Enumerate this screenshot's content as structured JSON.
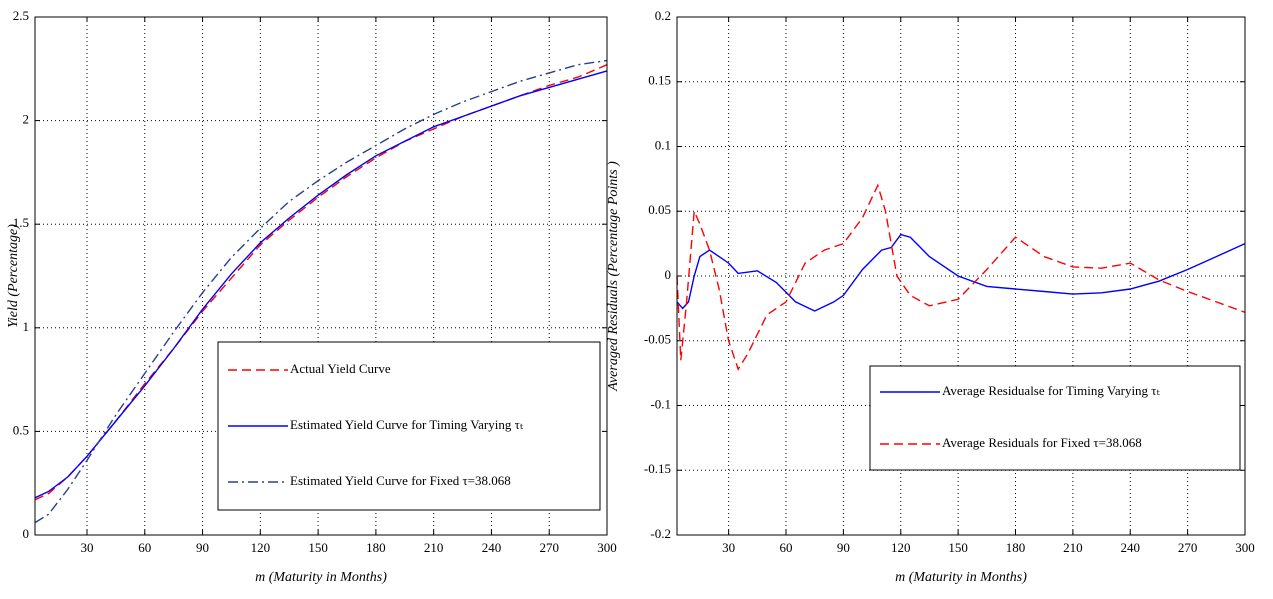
{
  "chart_data": [
    {
      "type": "line",
      "xlabel": "m (Maturity in Months)",
      "ylabel": "Yield (Percentage)",
      "xlim": [
        3,
        300
      ],
      "ylim": [
        0,
        2.5
      ],
      "xticks": [
        30,
        60,
        90,
        120,
        150,
        180,
        210,
        240,
        270,
        300
      ],
      "yticks": [
        0,
        0.5,
        1,
        1.5,
        2,
        2.5
      ],
      "grid": true,
      "legend": "lower right",
      "series": [
        {
          "name": "Actual Yield Curve",
          "color": "#ff0000",
          "linestyle": "dashed",
          "x": [
            3,
            10,
            20,
            30,
            45,
            60,
            75,
            90,
            105,
            120,
            135,
            150,
            165,
            180,
            195,
            210,
            225,
            240,
            255,
            270,
            285,
            300
          ],
          "values": [
            0.17,
            0.2,
            0.28,
            0.38,
            0.55,
            0.73,
            0.9,
            1.08,
            1.24,
            1.4,
            1.52,
            1.63,
            1.73,
            1.82,
            1.9,
            1.96,
            2.02,
            2.07,
            2.12,
            2.17,
            2.21,
            2.27
          ]
        },
        {
          "name": "Estimated Yield Curve for Timing Varying τₜ",
          "color": "#0000ff",
          "linestyle": "solid",
          "x": [
            3,
            10,
            20,
            30,
            45,
            60,
            75,
            90,
            105,
            120,
            135,
            150,
            165,
            180,
            195,
            210,
            225,
            240,
            255,
            270,
            285,
            300
          ],
          "values": [
            0.18,
            0.21,
            0.28,
            0.38,
            0.55,
            0.72,
            0.9,
            1.09,
            1.26,
            1.41,
            1.53,
            1.64,
            1.74,
            1.83,
            1.9,
            1.97,
            2.02,
            2.07,
            2.12,
            2.16,
            2.2,
            2.24
          ]
        },
        {
          "name": "Estimated Yield Curve for Fixed τ=38.068",
          "color": "#2b3f8f",
          "linestyle": "dashdot",
          "x": [
            3,
            10,
            20,
            30,
            45,
            60,
            75,
            90,
            105,
            120,
            135,
            150,
            165,
            180,
            195,
            210,
            225,
            240,
            255,
            270,
            285,
            300
          ],
          "values": [
            0.06,
            0.1,
            0.22,
            0.36,
            0.58,
            0.78,
            0.98,
            1.17,
            1.34,
            1.48,
            1.61,
            1.71,
            1.8,
            1.88,
            1.96,
            2.03,
            2.09,
            2.14,
            2.19,
            2.23,
            2.27,
            2.29
          ]
        }
      ]
    },
    {
      "type": "line",
      "xlabel": "m (Maturity in Months)",
      "ylabel": "Averaged Residuals (Percentage Points )",
      "xlim": [
        3,
        300
      ],
      "ylim": [
        -0.2,
        0.2
      ],
      "xticks": [
        30,
        60,
        90,
        120,
        150,
        180,
        210,
        240,
        270,
        300
      ],
      "yticks": [
        -0.2,
        -0.15,
        -0.1,
        -0.05,
        0,
        0.05,
        0.1,
        0.15,
        0.2
      ],
      "grid": true,
      "legend": "lower right",
      "series": [
        {
          "name": "Average Residualse for Timing Varying τₜ",
          "color": "#0000ff",
          "linestyle": "solid",
          "x": [
            3,
            6,
            9,
            12,
            15,
            20,
            25,
            30,
            35,
            45,
            55,
            65,
            75,
            85,
            90,
            100,
            110,
            115,
            120,
            125,
            135,
            150,
            165,
            180,
            195,
            210,
            225,
            240,
            255,
            270,
            285,
            300
          ],
          "values": [
            -0.02,
            -0.025,
            -0.02,
            0,
            0.015,
            0.02,
            0.015,
            0.01,
            0.002,
            0.004,
            -0.005,
            -0.02,
            -0.027,
            -0.02,
            -0.015,
            0.005,
            0.02,
            0.022,
            0.032,
            0.03,
            0.015,
            0,
            -0.008,
            -0.01,
            -0.012,
            -0.014,
            -0.013,
            -0.01,
            -0.004,
            0.005,
            0.015,
            0.025
          ]
        },
        {
          "name": "Average Residuals for Fixed τ=38.068",
          "color": "#ff0000",
          "linestyle": "dashed",
          "x": [
            3,
            5,
            8,
            12,
            15,
            20,
            25,
            30,
            35,
            40,
            50,
            60,
            70,
            80,
            90,
            100,
            108,
            112,
            118,
            125,
            135,
            150,
            165,
            180,
            195,
            210,
            225,
            240,
            255,
            270,
            285,
            300
          ],
          "values": [
            0,
            -0.065,
            -0.02,
            0.05,
            0.04,
            0.02,
            -0.01,
            -0.05,
            -0.072,
            -0.06,
            -0.03,
            -0.02,
            0.01,
            0.02,
            0.025,
            0.045,
            0.07,
            0.05,
            0,
            -0.015,
            -0.023,
            -0.018,
            0.005,
            0.03,
            0.015,
            0.007,
            0.006,
            0.01,
            -0.003,
            -0.012,
            -0.02,
            -0.028
          ]
        }
      ]
    }
  ]
}
